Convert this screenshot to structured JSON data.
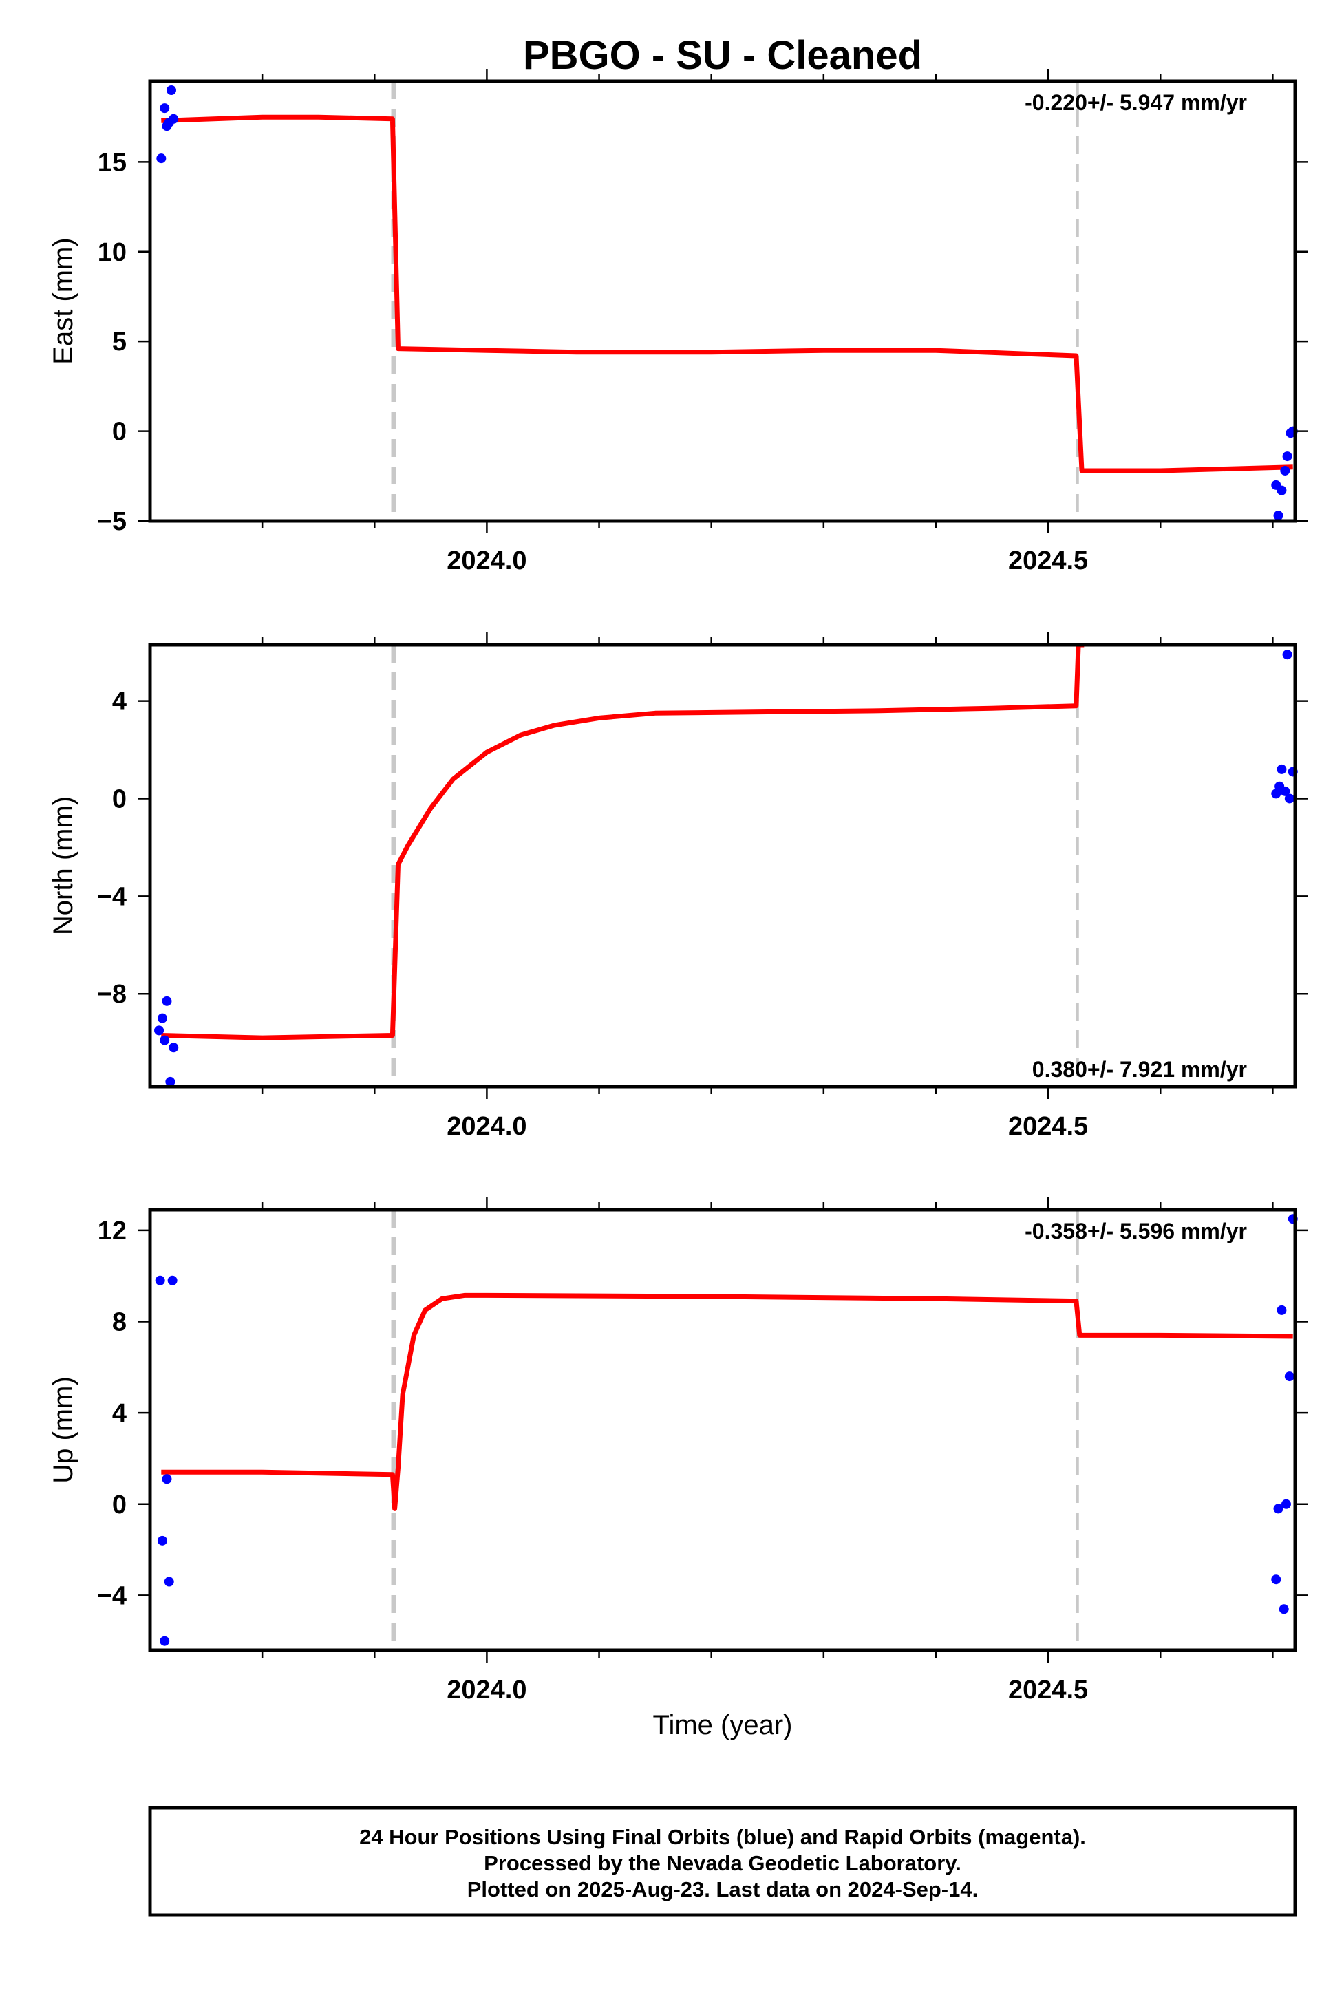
{
  "chart_data": {
    "type": "scatter",
    "title": "PBGO  - SU - Cleaned",
    "xlabel": "Time (year)",
    "xlim": [
      2023.7,
      2024.72
    ],
    "x_ticks": [
      2024.0,
      2024.5
    ],
    "x_tick_labels": [
      "2024.0",
      "2024.5"
    ],
    "point_color": "#0000ff",
    "model_color": "#ff0000",
    "event_color": "#c8c8c8",
    "events": [
      2023.917,
      2024.526
    ],
    "panels": [
      {
        "name": "east",
        "ylabel": "East (mm)",
        "ylim": [
          -5,
          19.5
        ],
        "y_ticks": [
          -5,
          0,
          5,
          10,
          15
        ],
        "y_tick_labels": [
          "−5",
          "0",
          "5",
          "10",
          "15"
        ],
        "rate_text": "-0.220+/- 5.947 mm/yr",
        "rate_position": "top-right",
        "points": {
          "x": [
            2023.71,
            2023.713,
            2023.715,
            2023.717,
            2023.719,
            2023.721,
            2024.703,
            2024.705,
            2024.708,
            2024.711,
            2024.713,
            2024.716,
            2024.718
          ],
          "y": [
            15.2,
            18.0,
            17.0,
            17.2,
            19.0,
            17.4,
            -3.0,
            -4.7,
            -3.3,
            -2.2,
            -1.4,
            -0.1,
            0.0
          ]
        },
        "model": {
          "x": [
            2023.71,
            2023.8,
            2023.85,
            2023.916,
            2023.921,
            2024.0,
            2024.08,
            2024.2,
            2024.3,
            2024.4,
            2024.525,
            2024.53,
            2024.6,
            2024.66,
            2024.718
          ],
          "y": [
            17.3,
            17.5,
            17.5,
            17.4,
            4.6,
            4.5,
            4.4,
            4.4,
            4.5,
            4.5,
            4.2,
            -2.2,
            -2.2,
            -2.1,
            -2.0
          ]
        }
      },
      {
        "name": "north",
        "ylabel": "North (mm)",
        "ylim": [
          -11.8,
          6.3
        ],
        "y_ticks": [
          -8,
          -4,
          0,
          4
        ],
        "y_tick_labels": [
          "−8",
          "−4",
          "0",
          "4"
        ],
        "rate_text": "0.380+/- 7.921 mm/yr",
        "rate_position": "bottom-right",
        "points": {
          "x": [
            2023.708,
            2023.711,
            2023.713,
            2023.715,
            2023.718,
            2023.721,
            2024.703,
            2024.706,
            2024.708,
            2024.711,
            2024.713,
            2024.715,
            2024.718
          ],
          "y": [
            -9.5,
            -9.0,
            -9.9,
            -8.3,
            -11.6,
            -10.2,
            0.2,
            0.5,
            1.2,
            0.3,
            5.9,
            0.0,
            1.1
          ]
        },
        "model": {
          "x": [
            2023.71,
            2023.8,
            2023.916,
            2023.921,
            2023.93,
            2023.95,
            2023.97,
            2024.0,
            2024.03,
            2024.06,
            2024.1,
            2024.15,
            2024.25,
            2024.35,
            2024.45,
            2024.525,
            2024.527,
            2024.532
          ],
          "y": [
            -9.7,
            -9.8,
            -9.7,
            -2.7,
            -1.9,
            -0.4,
            0.8,
            1.9,
            2.6,
            3.0,
            3.3,
            3.5,
            3.55,
            3.6,
            3.7,
            3.8,
            6.3,
            6.3
          ]
        }
      },
      {
        "name": "up",
        "ylabel": "Up (mm)",
        "ylim": [
          -6.4,
          12.9
        ],
        "y_ticks": [
          -4,
          0,
          4,
          8,
          12
        ],
        "y_tick_labels": [
          "−4",
          "0",
          "4",
          "8",
          "12"
        ],
        "rate_text": "-0.358+/- 5.596 mm/yr",
        "rate_position": "top-right",
        "points": {
          "x": [
            2023.709,
            2023.711,
            2023.713,
            2023.715,
            2023.717,
            2023.72,
            2024.703,
            2024.705,
            2024.708,
            2024.71,
            2024.712,
            2024.715
          ],
          "y": [
            9.8,
            -1.6,
            -6.0,
            1.1,
            -3.4,
            9.8,
            -3.3,
            -0.2,
            8.5,
            -4.6,
            0.0,
            5.6
          ]
        },
        "extra_points": {
          "x": [
            2024.718
          ],
          "y": [
            12.5
          ]
        },
        "model": {
          "x": [
            2023.71,
            2023.8,
            2023.916,
            2023.918,
            2023.921,
            2023.925,
            2023.935,
            2023.945,
            2023.96,
            2023.98,
            2024.0,
            2024.2,
            2024.4,
            2024.525,
            2024.528,
            2024.6,
            2024.718
          ],
          "y": [
            1.4,
            1.4,
            1.3,
            -0.2,
            1.6,
            4.8,
            7.4,
            8.5,
            9.0,
            9.15,
            9.15,
            9.1,
            9.0,
            8.9,
            7.4,
            7.4,
            7.35
          ]
        }
      }
    ]
  },
  "footer": {
    "line1": "24 Hour Positions Using Final Orbits (blue) and Rapid Orbits (magenta).",
    "line2": "Processed by the Nevada Geodetic Laboratory.",
    "line3": "Plotted on 2025-Aug-23. Last data on 2024-Sep-14."
  }
}
